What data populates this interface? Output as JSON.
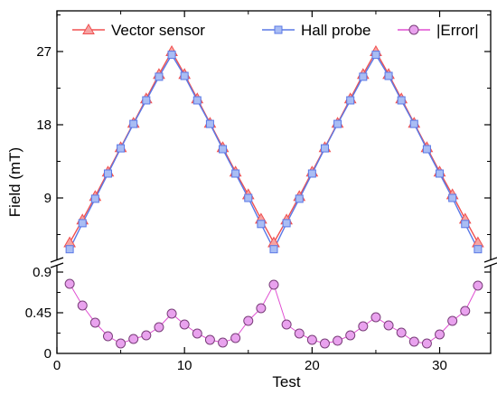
{
  "chart_data": {
    "type": "line",
    "xlabel": "Test",
    "ylabel": "Field (mT)",
    "xlim": [
      0,
      34
    ],
    "xticks": [
      0,
      10,
      20,
      30
    ],
    "panels": {
      "upper": {
        "ylim": [
          1,
          32
        ],
        "yticks": [
          9,
          18,
          27
        ]
      },
      "lower": {
        "ylim": [
          0,
          1.0
        ],
        "yticks": [
          0,
          0.45,
          0.9
        ],
        "ytick_labels": [
          "0",
          "0.45",
          "0.9"
        ]
      }
    },
    "legend_position": "top",
    "series": [
      {
        "name": "Vector sensor",
        "panel": "upper",
        "color": "#f05050",
        "marker": "triangle",
        "x": [
          1,
          2,
          3,
          4,
          5,
          6,
          7,
          8,
          9,
          10,
          11,
          12,
          13,
          14,
          15,
          16,
          17,
          18,
          19,
          20,
          21,
          22,
          23,
          24,
          25,
          26,
          27,
          28,
          29,
          30,
          31,
          32,
          33
        ],
        "values": [
          3.5,
          6.3,
          9.2,
          12.2,
          15.2,
          18.2,
          21.2,
          24.2,
          27.0,
          24.2,
          21.2,
          18.2,
          15.2,
          12.2,
          9.4,
          6.4,
          3.5,
          6.3,
          9.2,
          12.2,
          15.2,
          18.2,
          21.2,
          24.2,
          27.0,
          24.2,
          21.2,
          18.2,
          15.2,
          12.2,
          9.4,
          6.4,
          3.5
        ]
      },
      {
        "name": "Hall probe",
        "panel": "upper",
        "color": "#5a78e6",
        "marker": "square",
        "x": [
          1,
          2,
          3,
          4,
          5,
          6,
          7,
          8,
          9,
          10,
          11,
          12,
          13,
          14,
          15,
          16,
          17,
          18,
          19,
          20,
          21,
          22,
          23,
          24,
          25,
          26,
          27,
          28,
          29,
          30,
          31,
          32,
          33
        ],
        "values": [
          2.7,
          5.9,
          8.9,
          12.0,
          15.1,
          18.1,
          21.0,
          23.9,
          26.6,
          24.0,
          21.0,
          18.1,
          15.0,
          12.0,
          9.0,
          5.8,
          2.7,
          5.9,
          8.9,
          12.0,
          15.1,
          18.1,
          21.0,
          23.9,
          26.6,
          24.0,
          21.0,
          18.1,
          15.0,
          12.0,
          9.0,
          5.8,
          2.7
        ]
      },
      {
        "name": "|Error|",
        "panel": "lower",
        "color": "#e04fd2",
        "marker": "circle",
        "x": [
          1,
          2,
          3,
          4,
          5,
          6,
          7,
          8,
          9,
          10,
          11,
          12,
          13,
          14,
          15,
          16,
          17,
          18,
          19,
          20,
          21,
          22,
          23,
          24,
          25,
          26,
          27,
          28,
          29,
          30,
          31,
          32,
          33
        ],
        "values": [
          0.77,
          0.53,
          0.34,
          0.19,
          0.11,
          0.16,
          0.2,
          0.29,
          0.44,
          0.32,
          0.22,
          0.15,
          0.12,
          0.17,
          0.36,
          0.5,
          0.76,
          0.32,
          0.22,
          0.15,
          0.11,
          0.14,
          0.2,
          0.3,
          0.4,
          0.31,
          0.23,
          0.13,
          0.11,
          0.21,
          0.36,
          0.47,
          0.75
        ]
      }
    ]
  }
}
